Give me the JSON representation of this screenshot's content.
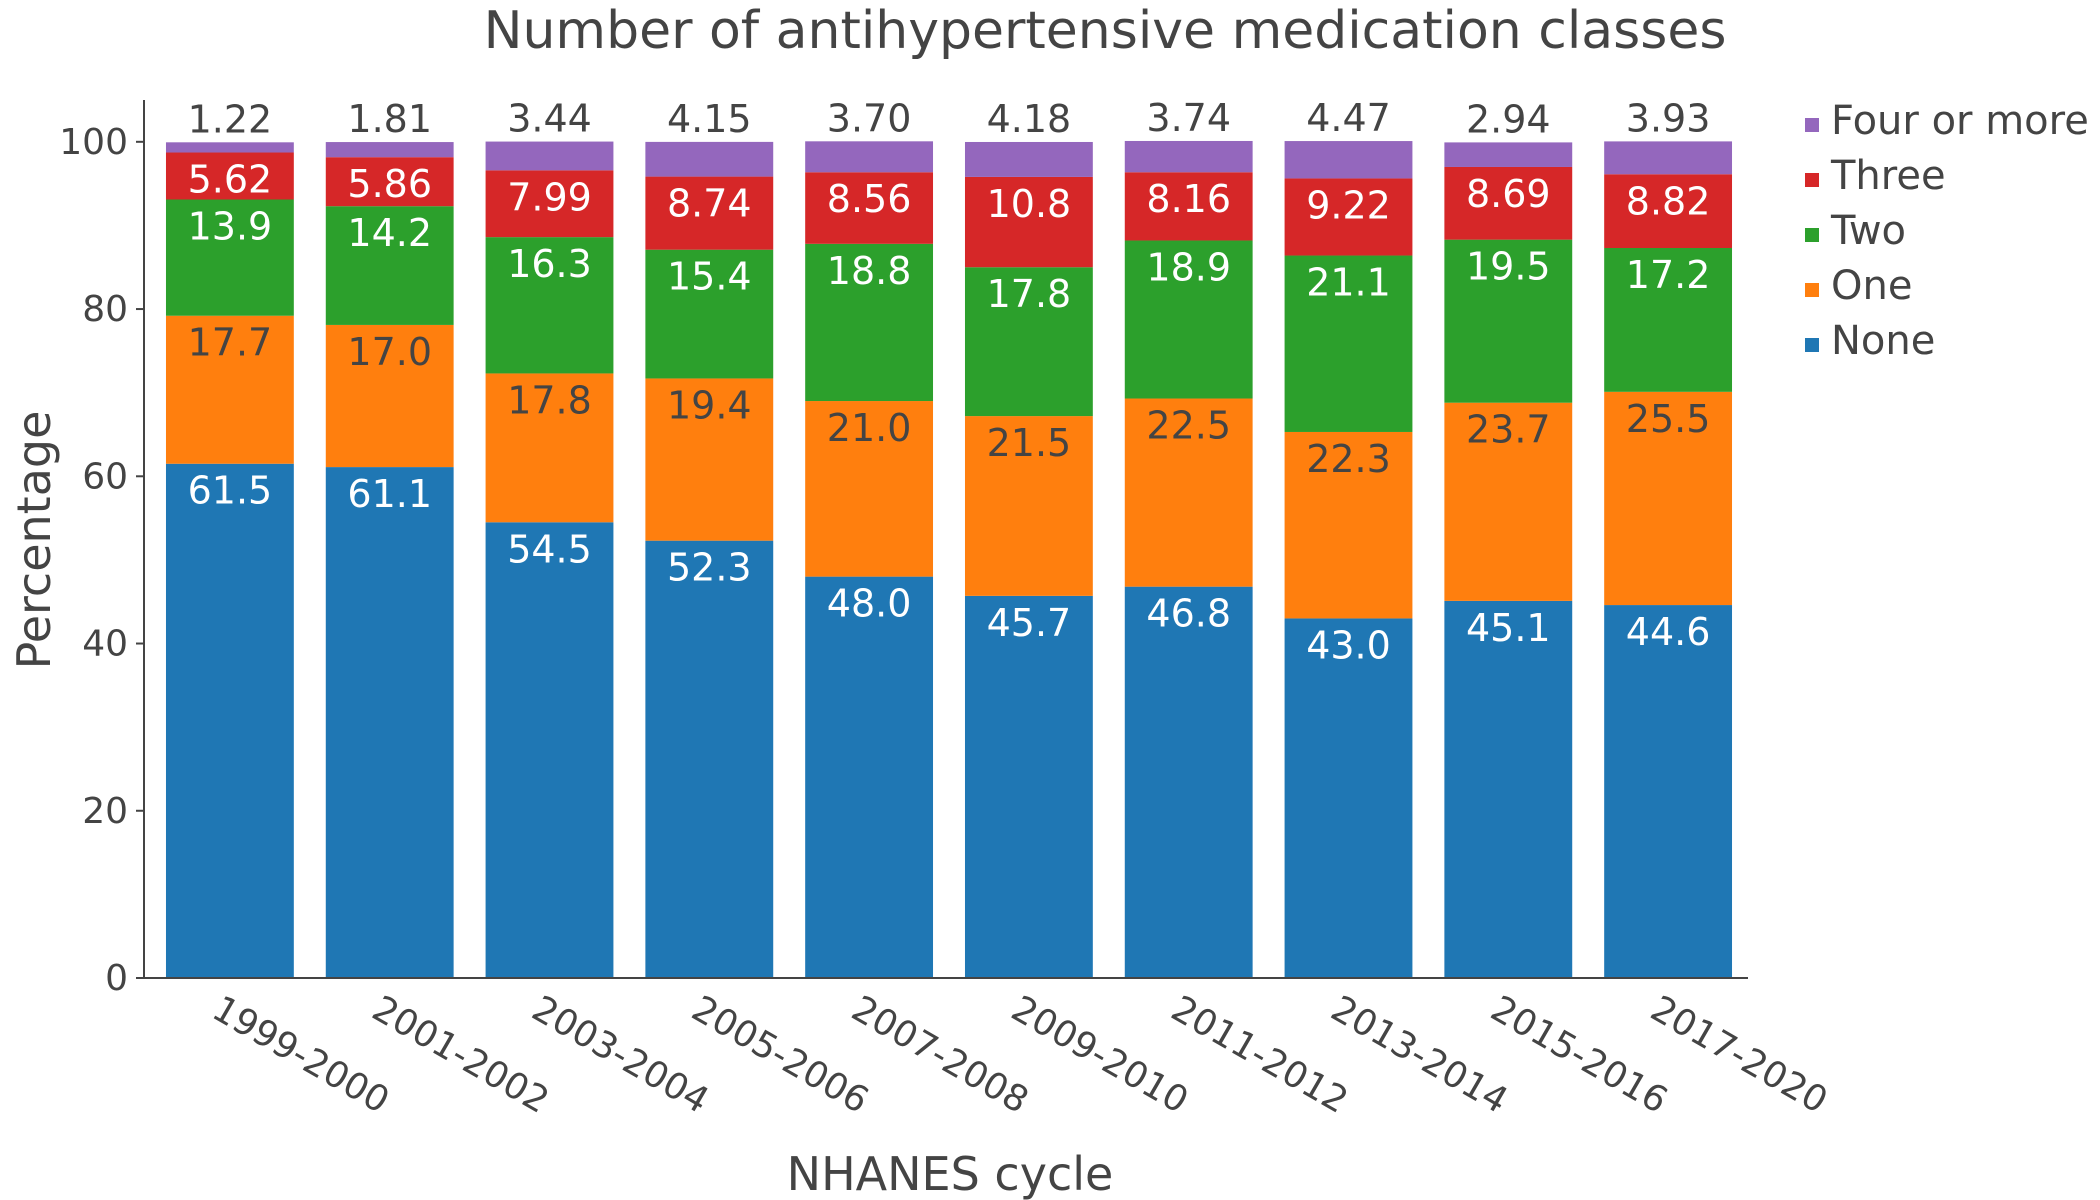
{
  "chart_data": {
    "type": "bar",
    "stacked": true,
    "title": "Number of antihypertensive medication classes",
    "xlabel": "NHANES cycle",
    "ylabel": "Percentage",
    "ylim": [
      0,
      105
    ],
    "yticks": [
      0,
      20,
      40,
      60,
      80,
      100
    ],
    "grid": false,
    "legend_position": "top-right",
    "categories": [
      "1999-2000",
      "2001-2002",
      "2003-2004",
      "2005-2006",
      "2007-2008",
      "2009-2010",
      "2011-2012",
      "2013-2014",
      "2015-2016",
      "2017-2020"
    ],
    "series": [
      {
        "name": "None",
        "color": "#1f77b4",
        "values": [
          61.5,
          61.1,
          54.5,
          52.3,
          48.0,
          45.7,
          46.8,
          43.0,
          45.1,
          44.6
        ],
        "labels": [
          "61.5",
          "61.1",
          "54.5",
          "52.3",
          "48.0",
          "45.7",
          "46.8",
          "43.0",
          "45.1",
          "44.6"
        ],
        "label_color": "#ffffff"
      },
      {
        "name": "One",
        "color": "#ff7f0e",
        "values": [
          17.7,
          17.0,
          17.8,
          19.4,
          21.0,
          21.5,
          22.5,
          22.3,
          23.7,
          25.5
        ],
        "labels": [
          "17.7",
          "17.0",
          "17.8",
          "19.4",
          "21.0",
          "21.5",
          "22.5",
          "22.3",
          "23.7",
          "25.5"
        ],
        "label_color": "#444444"
      },
      {
        "name": "Two",
        "color": "#2ca02c",
        "values": [
          13.9,
          14.2,
          16.3,
          15.4,
          18.8,
          17.8,
          18.9,
          21.1,
          19.5,
          17.2
        ],
        "labels": [
          "13.9",
          "14.2",
          "16.3",
          "15.4",
          "18.8",
          "17.8",
          "18.9",
          "21.1",
          "19.5",
          "17.2"
        ],
        "label_color": "#ffffff"
      },
      {
        "name": "Three",
        "color": "#d62728",
        "values": [
          5.62,
          5.86,
          7.99,
          8.74,
          8.56,
          10.8,
          8.16,
          9.22,
          8.69,
          8.82
        ],
        "labels": [
          "5.62",
          "5.86",
          "7.99",
          "8.74",
          "8.56",
          "10.8",
          "8.16",
          "9.22",
          "8.69",
          "8.82"
        ],
        "label_color": "#ffffff"
      },
      {
        "name": "Four or more",
        "color": "#9467bd",
        "values": [
          1.22,
          1.81,
          3.44,
          4.15,
          3.7,
          4.18,
          3.74,
          4.47,
          2.94,
          3.93
        ],
        "labels": [
          "1.22",
          "1.81",
          "3.44",
          "4.15",
          "3.70",
          "4.18",
          "3.74",
          "4.47",
          "2.94",
          "3.93"
        ],
        "label_color": "#444444",
        "label_outside": true
      }
    ],
    "legend_order": [
      "Four or more",
      "Three",
      "Two",
      "One",
      "None"
    ]
  }
}
